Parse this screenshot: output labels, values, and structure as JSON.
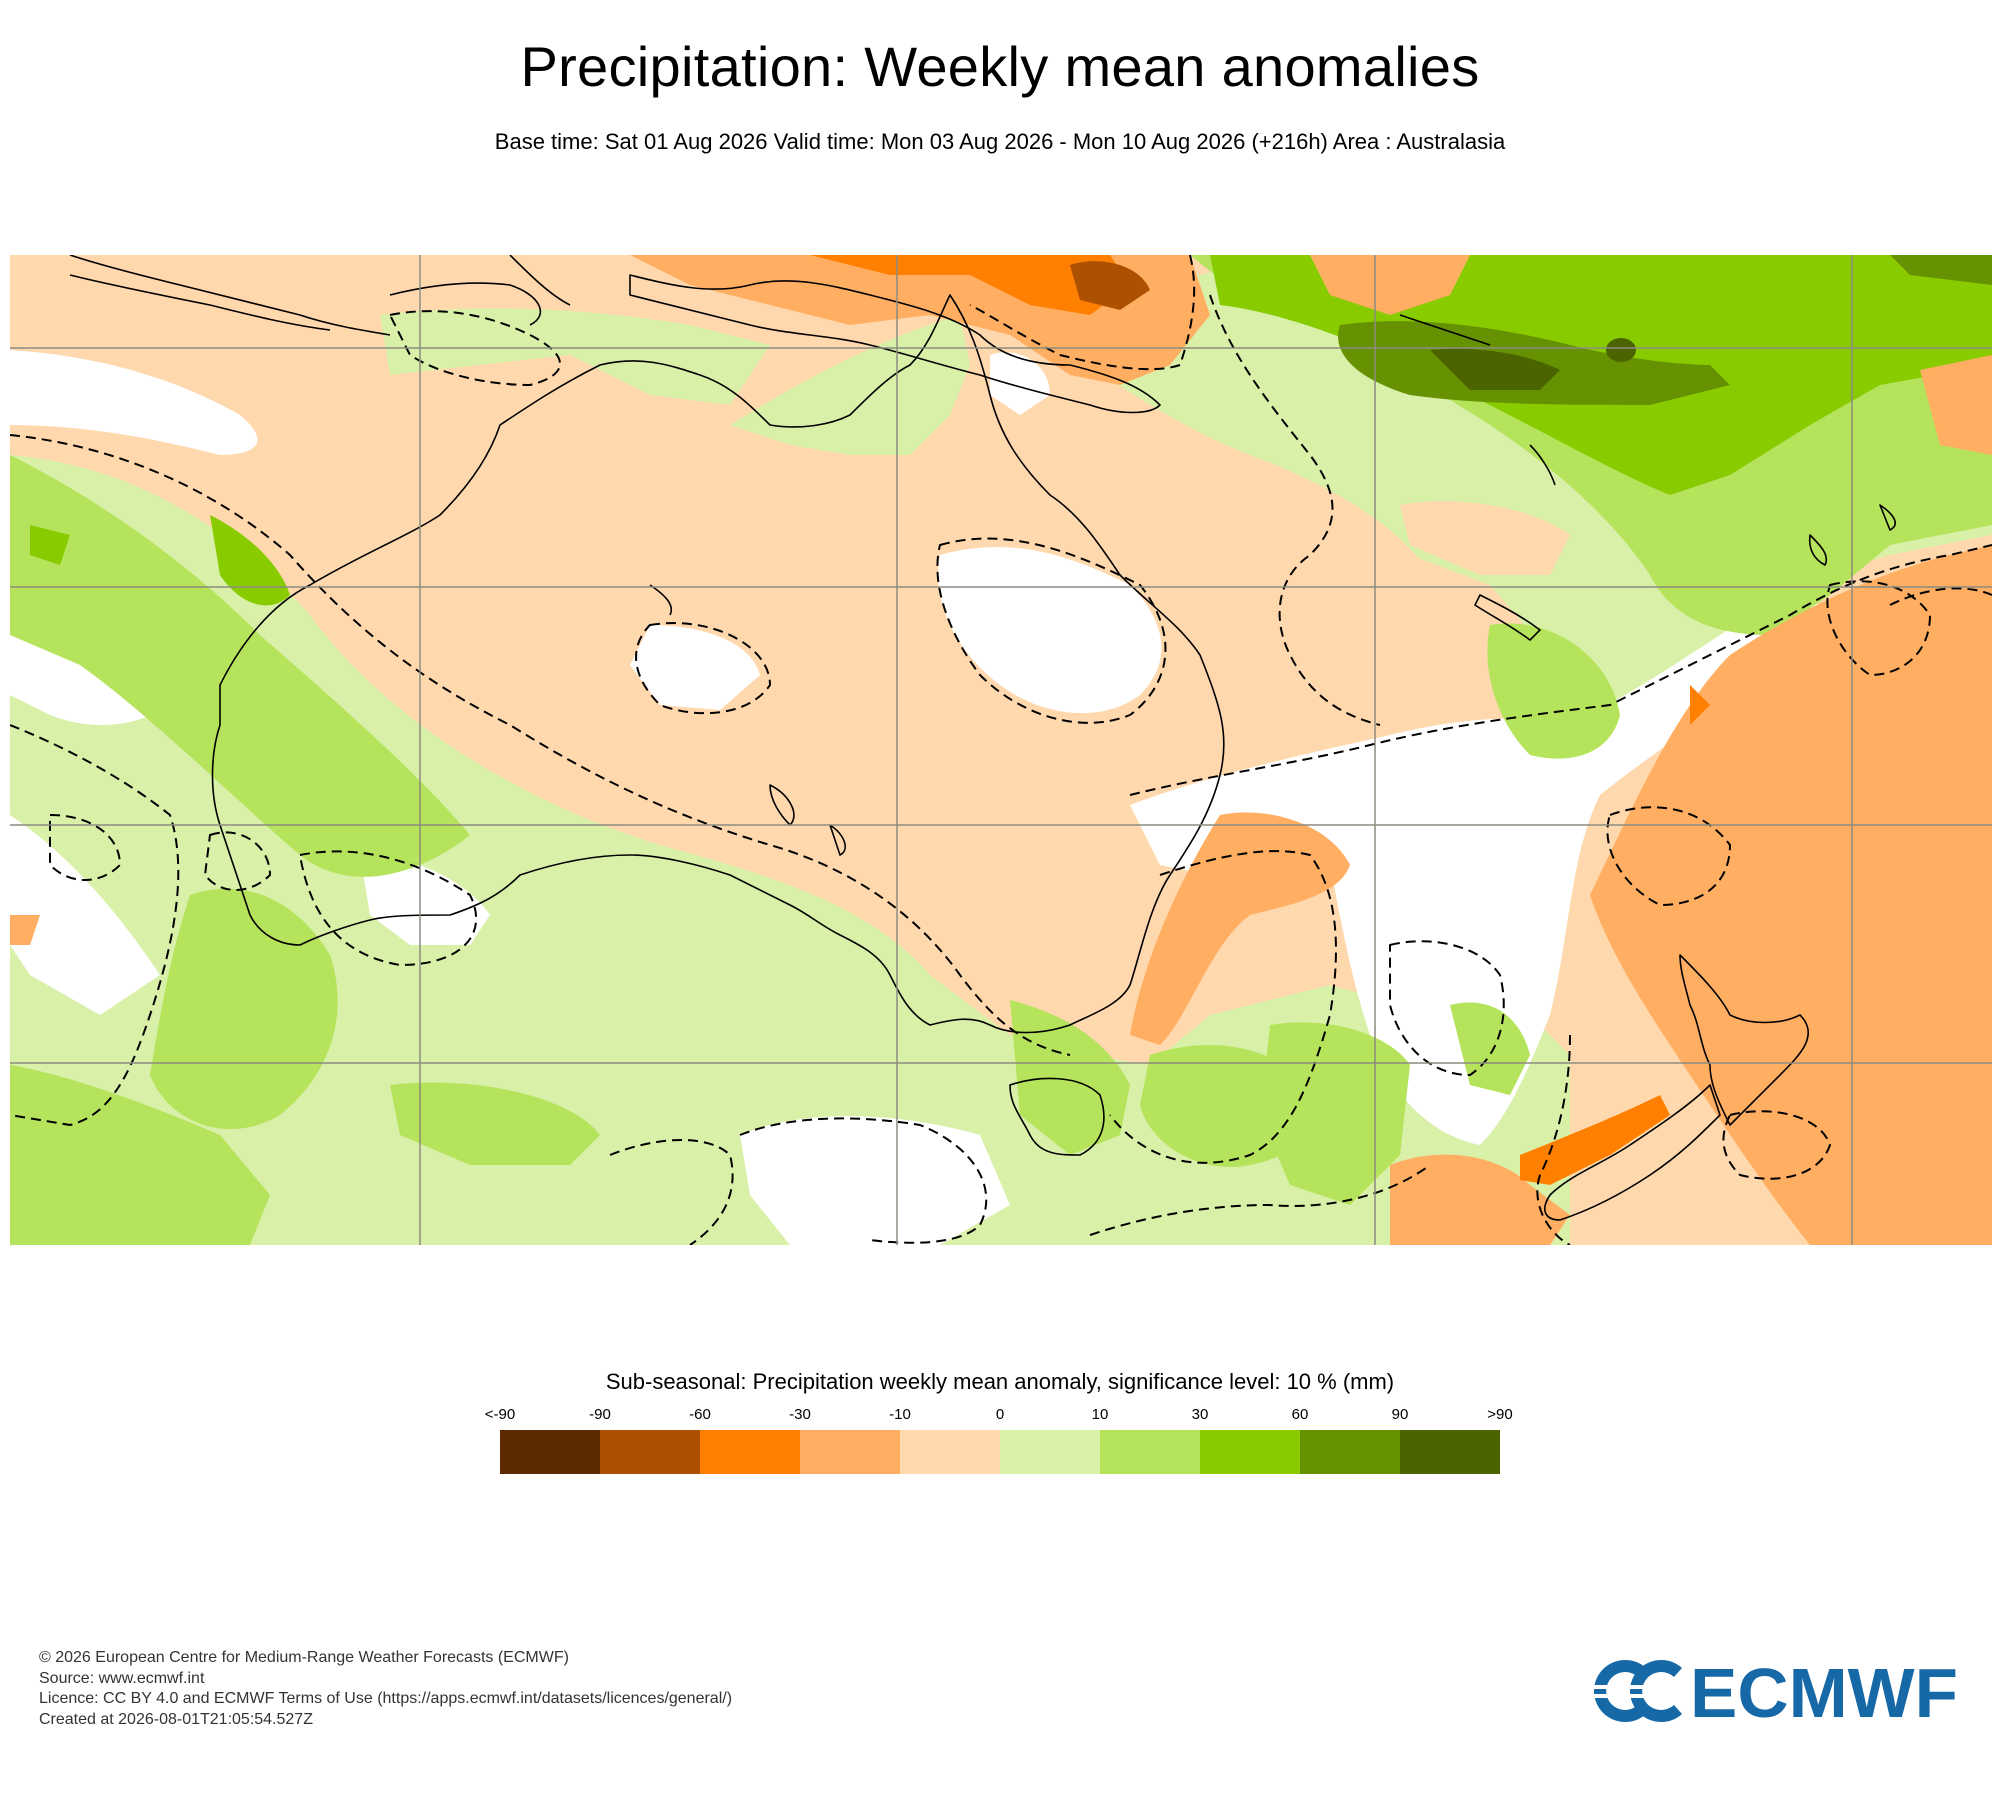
{
  "header": {
    "title": "Precipitation: Weekly mean anomalies",
    "subtitle": "Base time: Sat 01 Aug 2026 Valid time: Mon 03 Aug 2026 - Mon 10 Aug 2026 (+216h) Area : Australasia"
  },
  "legend": {
    "title": "Sub-seasonal: Precipitation weekly mean anomaly, significance level: 10 % (mm)",
    "ticks": [
      "<-90",
      "-90",
      "-60",
      "-30",
      "-10",
      "0",
      "10",
      "30",
      "60",
      "90",
      ">90"
    ],
    "colors": [
      "#5c2c00",
      "#ad5100",
      "#ff7f00",
      "#ffae62",
      "#ffd8ae",
      "#d9f0a8",
      "#b5e35b",
      "#88cc00",
      "#669100",
      "#4b6400"
    ]
  },
  "colors": {
    "ocean_neutral": "#ffffff",
    "coastline": "#000000",
    "gridline": "#8c8c80",
    "significance_contour": "#000000",
    "brand": "#1668a6"
  },
  "footer": {
    "lines": [
      "© 2026 European Centre for Medium-Range Weather Forecasts (ECMWF)",
      "Source: www.ecmwf.int",
      "Licence: CC BY 4.0 and ECMWF Terms of Use (https://apps.ecmwf.int/datasets/licences/general/)",
      "Created at 2026-08-01T21:05:54.527Z"
    ]
  },
  "logo": {
    "text": "ECMWF"
  }
}
